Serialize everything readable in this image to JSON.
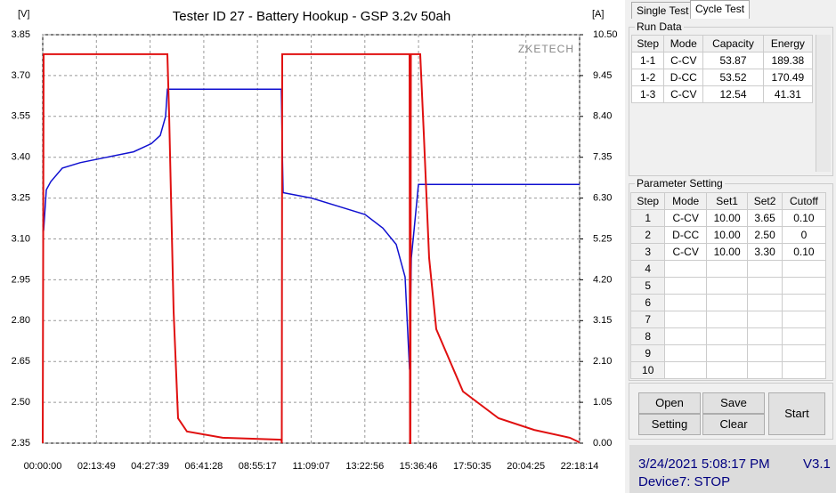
{
  "chart_data": {
    "type": "line",
    "title": "Tester ID 27 - Battery Hookup - GSP 3.2v 50ah",
    "y_unit": "[V]",
    "y2_unit": "[A]",
    "watermark": "ZKETECH",
    "xlim": [
      0,
      80294
    ],
    "xticks": [
      {
        "value": 0,
        "label": "00:00:00"
      },
      {
        "value": 8029,
        "label": "02:13:49"
      },
      {
        "value": 16059,
        "label": "04:27:39"
      },
      {
        "value": 24088,
        "label": "06:41:28"
      },
      {
        "value": 32117,
        "label": "08:55:17"
      },
      {
        "value": 40147,
        "label": "11:09:07"
      },
      {
        "value": 48176,
        "label": "13:22:56"
      },
      {
        "value": 56206,
        "label": "15:36:46"
      },
      {
        "value": 64235,
        "label": "17:50:35"
      },
      {
        "value": 72265,
        "label": "20:04:25"
      },
      {
        "value": 80294,
        "label": "22:18:14"
      }
    ],
    "ylim": [
      2.35,
      3.85
    ],
    "yticks": [
      3.85,
      {
        "value": 3.7,
        "label": "3.70"
      },
      3.55,
      {
        "value": 3.4,
        "label": "3.40"
      },
      3.25,
      {
        "value": 3.1,
        "label": "3.10"
      },
      2.95,
      {
        "value": 2.8,
        "label": "2.80"
      },
      2.65,
      {
        "value": 2.5,
        "label": "2.50"
      },
      2.35
    ],
    "y2lim": [
      0,
      10.5
    ],
    "y2ticks": [
      {
        "value": 10.5,
        "label": "10.50"
      },
      9.45,
      {
        "value": 8.4,
        "label": "8.40"
      },
      7.35,
      {
        "value": 6.3,
        "label": "6.30"
      },
      5.25,
      {
        "value": 4.2,
        "label": "4.20"
      },
      3.15,
      {
        "value": 2.1,
        "label": "2.10"
      },
      1.05,
      {
        "value": 0,
        "label": "0.00"
      }
    ],
    "grid": true,
    "series": [
      {
        "color": "#1010d0",
        "axis": "y",
        "x": [
          133,
          533,
          1198,
          2929,
          5592,
          9587,
          13582,
          16245,
          17577,
          18376,
          18642,
          35686,
          35819,
          35952,
          40213,
          44208,
          48203,
          50866,
          52863,
          54195,
          54860,
          55127,
          55526,
          56192,
          80294
        ],
        "values": [
          3.13,
          3.28,
          3.31,
          3.36,
          3.38,
          3.4,
          3.42,
          3.45,
          3.48,
          3.55,
          3.65,
          3.65,
          3.44,
          3.27,
          3.25,
          3.22,
          3.19,
          3.14,
          3.08,
          2.96,
          2.62,
          3.03,
          3.13,
          3.3,
          3.3
        ]
      },
      {
        "color": "#e01010",
        "axis": "y2",
        "x": [
          0,
          133,
          18642,
          18908,
          19574,
          20240,
          21571,
          26898,
          35686,
          35752,
          35819,
          54860,
          54927,
          54993,
          55060,
          56458,
          56990,
          57789,
          58854,
          62849,
          68176,
          73502,
          78829,
          80294
        ],
        "values": [
          0,
          10,
          10,
          8.42,
          3.39,
          0.64,
          0.3,
          0.14,
          0.09,
          0,
          10,
          10,
          0,
          0,
          10,
          10,
          7.96,
          4.76,
          2.93,
          1.33,
          0.64,
          0.34,
          0.14,
          0.02
        ]
      }
    ]
  },
  "tabs": [
    "Single Test",
    "Cycle Test"
  ],
  "run_data": {
    "title": "Run Data",
    "columns": [
      "Step",
      "Mode",
      "Capacity",
      "Energy"
    ],
    "rows": [
      [
        "1-1",
        "C-CV",
        "53.87",
        "189.38"
      ],
      [
        "1-2",
        "D-CC",
        "53.52",
        "170.49"
      ],
      [
        "1-3",
        "C-CV",
        "12.54",
        "41.31"
      ]
    ]
  },
  "parameter_setting": {
    "title": "Parameter Setting",
    "columns": [
      "Step",
      "Mode",
      "Set1",
      "Set2",
      "Cutoff"
    ],
    "rows": [
      [
        "1",
        "C-CV",
        "10.00",
        "3.65",
        "0.10"
      ],
      [
        "2",
        "D-CC",
        "10.00",
        "2.50",
        "0"
      ],
      [
        "3",
        "C-CV",
        "10.00",
        "3.30",
        "0.10"
      ],
      [
        "4"
      ],
      [
        "5"
      ],
      [
        "6"
      ],
      [
        "7"
      ],
      [
        "8"
      ],
      [
        "9"
      ],
      [
        "10"
      ]
    ]
  },
  "buttons": {
    "open": "Open",
    "save": "Save",
    "setting": "Setting",
    "clear": "Clear",
    "start": "Start"
  },
  "status": {
    "datetime": "3/24/2021 5:08:17 PM",
    "version": "V3.1",
    "device": "Device7: STOP"
  }
}
